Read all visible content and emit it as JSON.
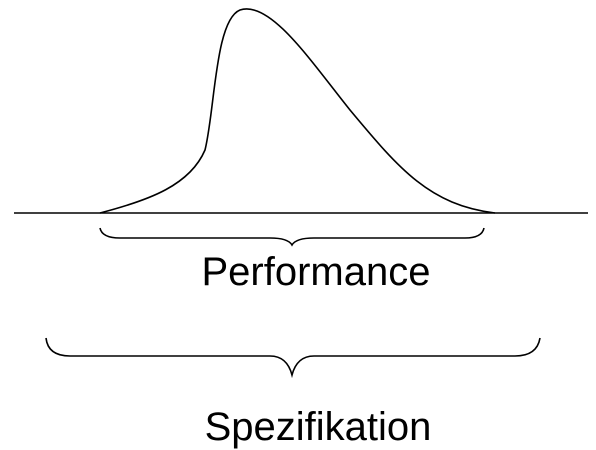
{
  "labels": {
    "inner": "Performance",
    "outer": "Spezifikation"
  }
}
